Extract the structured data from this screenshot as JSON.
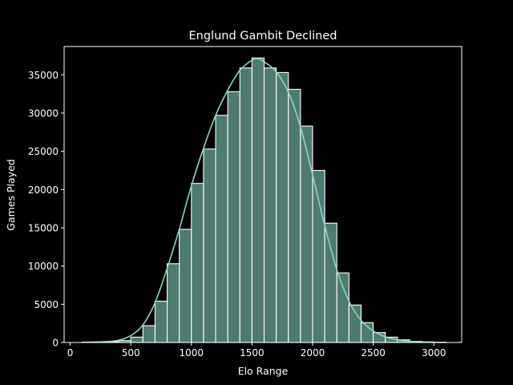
{
  "chart_data": {
    "type": "bar",
    "title": "Englund Gambit Declined",
    "xlabel": "Elo Range",
    "ylabel": "Games Played",
    "xlim": [
      -50,
      3230
    ],
    "ylim": [
      0,
      38700
    ],
    "xticks": [
      0,
      500,
      1000,
      1500,
      2000,
      2500,
      3000
    ],
    "yticks": [
      0,
      5000,
      10000,
      15000,
      20000,
      25000,
      30000,
      35000
    ],
    "bin_width": 100,
    "bins": [
      {
        "x0": 100,
        "x1": 200,
        "value": 40
      },
      {
        "x0": 200,
        "x1": 300,
        "value": 60
      },
      {
        "x0": 300,
        "x1": 400,
        "value": 120
      },
      {
        "x0": 400,
        "x1": 500,
        "value": 250
      },
      {
        "x0": 500,
        "x1": 600,
        "value": 700
      },
      {
        "x0": 600,
        "x1": 700,
        "value": 2200
      },
      {
        "x0": 700,
        "x1": 800,
        "value": 5400
      },
      {
        "x0": 800,
        "x1": 900,
        "value": 10300
      },
      {
        "x0": 900,
        "x1": 1000,
        "value": 14800
      },
      {
        "x0": 1000,
        "x1": 1100,
        "value": 20800
      },
      {
        "x0": 1100,
        "x1": 1200,
        "value": 25300
      },
      {
        "x0": 1200,
        "x1": 1300,
        "value": 29700
      },
      {
        "x0": 1300,
        "x1": 1400,
        "value": 32800
      },
      {
        "x0": 1400,
        "x1": 1500,
        "value": 35900
      },
      {
        "x0": 1500,
        "x1": 1600,
        "value": 37200
      },
      {
        "x0": 1600,
        "x1": 1700,
        "value": 35900
      },
      {
        "x0": 1700,
        "x1": 1800,
        "value": 35300
      },
      {
        "x0": 1800,
        "x1": 1900,
        "value": 33100
      },
      {
        "x0": 1900,
        "x1": 2000,
        "value": 28300
      },
      {
        "x0": 2000,
        "x1": 2100,
        "value": 22500
      },
      {
        "x0": 2100,
        "x1": 2200,
        "value": 15600
      },
      {
        "x0": 2200,
        "x1": 2300,
        "value": 9100
      },
      {
        "x0": 2300,
        "x1": 2400,
        "value": 4900
      },
      {
        "x0": 2400,
        "x1": 2500,
        "value": 2600
      },
      {
        "x0": 2500,
        "x1": 2600,
        "value": 1300
      },
      {
        "x0": 2600,
        "x1": 2700,
        "value": 700
      },
      {
        "x0": 2700,
        "x1": 2800,
        "value": 350
      },
      {
        "x0": 2800,
        "x1": 2900,
        "value": 150
      },
      {
        "x0": 2900,
        "x1": 3000,
        "value": 70
      },
      {
        "x0": 3000,
        "x1": 3100,
        "value": 40
      }
    ],
    "kde": {
      "x": [
        100,
        200,
        300,
        400,
        500,
        600,
        700,
        800,
        900,
        1000,
        1100,
        1200,
        1300,
        1400,
        1500,
        1550,
        1600,
        1700,
        1800,
        1900,
        2000,
        2100,
        2200,
        2300,
        2400,
        2500,
        2600,
        2700,
        2800,
        2900,
        3000,
        3080
      ],
      "y": [
        30,
        60,
        120,
        300,
        900,
        2300,
        5200,
        9700,
        14800,
        20500,
        25400,
        29700,
        33000,
        35600,
        36900,
        37100,
        36700,
        35400,
        32700,
        28200,
        21900,
        15300,
        9500,
        5400,
        2900,
        1500,
        750,
        350,
        150,
        70,
        30,
        15
      ]
    },
    "grid": false,
    "legend": "none",
    "colors": {
      "background": "#000000",
      "bar_fill": "#4e7a70",
      "bar_edge": "#ffffff",
      "kde_line": "#8dd3c7",
      "axes": "#ffffff",
      "text": "#ffffff"
    }
  }
}
